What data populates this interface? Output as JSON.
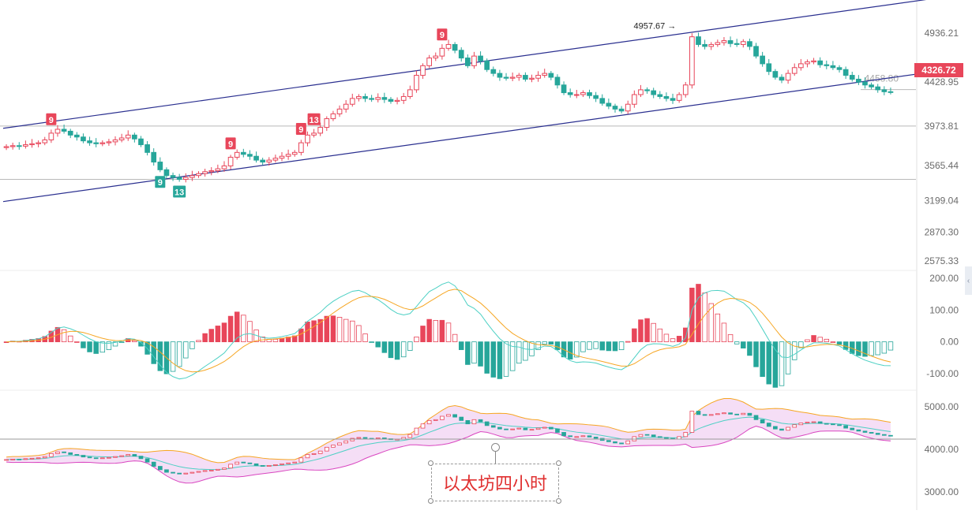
{
  "chart_data": [
    {
      "type": "candlestick",
      "panel": "price",
      "yticks": [
        "4936.21",
        "4428.95",
        "3973.81",
        "3565.44",
        "3199.04",
        "2870.30",
        "2575.33"
      ],
      "ylim": [
        2500,
        5200
      ],
      "current_price": "4326.72",
      "high_marker": "4957.67 →",
      "level_label": "4458.80",
      "horizontal_levels": [
        3973.81,
        3420
      ],
      "channel_upper": [
        [
          0,
          3950
        ],
        [
          145,
          5300
        ]
      ],
      "channel_lower": [
        [
          0,
          3190
        ],
        [
          145,
          4540
        ]
      ],
      "td_markers": [
        {
          "label": "9",
          "bar": 7,
          "side": "top",
          "color": "#e8465a"
        },
        {
          "label": "9",
          "bar": 35,
          "side": "top",
          "color": "#e8465a"
        },
        {
          "label": "9",
          "bar": 46,
          "side": "top",
          "color": "#e8465a"
        },
        {
          "label": "13",
          "bar": 48,
          "side": "top",
          "color": "#e8465a"
        },
        {
          "label": "9",
          "bar": 68,
          "side": "top",
          "color": "#e8465a"
        },
        {
          "label": "9",
          "bar": 24,
          "side": "bottom",
          "color": "#26a69a"
        },
        {
          "label": "13",
          "bar": 27,
          "side": "bottom",
          "color": "#26a69a"
        }
      ],
      "closes": [
        3760,
        3770,
        3765,
        3780,
        3790,
        3800,
        3830,
        3900,
        3940,
        3920,
        3880,
        3860,
        3820,
        3800,
        3790,
        3800,
        3810,
        3830,
        3850,
        3880,
        3840,
        3780,
        3700,
        3600,
        3520,
        3460,
        3440,
        3420,
        3440,
        3460,
        3480,
        3500,
        3510,
        3530,
        3560,
        3650,
        3700,
        3680,
        3660,
        3620,
        3600,
        3620,
        3640,
        3660,
        3680,
        3700,
        3800,
        3880,
        3900,
        3960,
        4050,
        4100,
        4150,
        4200,
        4260,
        4280,
        4260,
        4250,
        4270,
        4250,
        4230,
        4240,
        4280,
        4350,
        4500,
        4600,
        4680,
        4700,
        4780,
        4820,
        4760,
        4680,
        4600,
        4700,
        4650,
        4560,
        4520,
        4480,
        4470,
        4480,
        4500,
        4460,
        4470,
        4500,
        4520,
        4480,
        4400,
        4320,
        4300,
        4300,
        4320,
        4290,
        4260,
        4210,
        4180,
        4150,
        4130,
        4200,
        4300,
        4350,
        4340,
        4300,
        4280,
        4260,
        4240,
        4300,
        4400,
        4900,
        4820,
        4800,
        4820,
        4840,
        4860,
        4830,
        4820,
        4850,
        4800,
        4700,
        4620,
        4540,
        4480,
        4450,
        4520,
        4580,
        4620,
        4640,
        4650,
        4610,
        4600,
        4580,
        4560,
        4500,
        4460,
        4430,
        4400,
        4380,
        4350,
        4330,
        4326.72
      ]
    },
    {
      "type": "macd",
      "panel": "macd",
      "yticks": [
        "200.00",
        "100.00",
        "0.00",
        "-100.00"
      ],
      "ylim": [
        -140,
        220
      ],
      "colors": {
        "dif": "#4dd0c4",
        "dea": "#f6a623",
        "hist_up": "#e8465a",
        "hist_down": "#26a69a"
      }
    },
    {
      "type": "band",
      "panel": "band",
      "yticks": [
        "5000.00",
        "4000.00",
        "3000.00"
      ],
      "ylim": [
        2700,
        5300
      ],
      "colors": {
        "upper": "#f6a623",
        "lower": "#d946c0",
        "mid": "#4dd0c4",
        "fill": "#f3d6f4"
      }
    }
  ],
  "annotation": {
    "text": "以太坊四小时"
  },
  "colors": {
    "up": "#e8465a",
    "down": "#26a69a",
    "channel": "#2a2f8f",
    "level": "#b9b9b9"
  }
}
